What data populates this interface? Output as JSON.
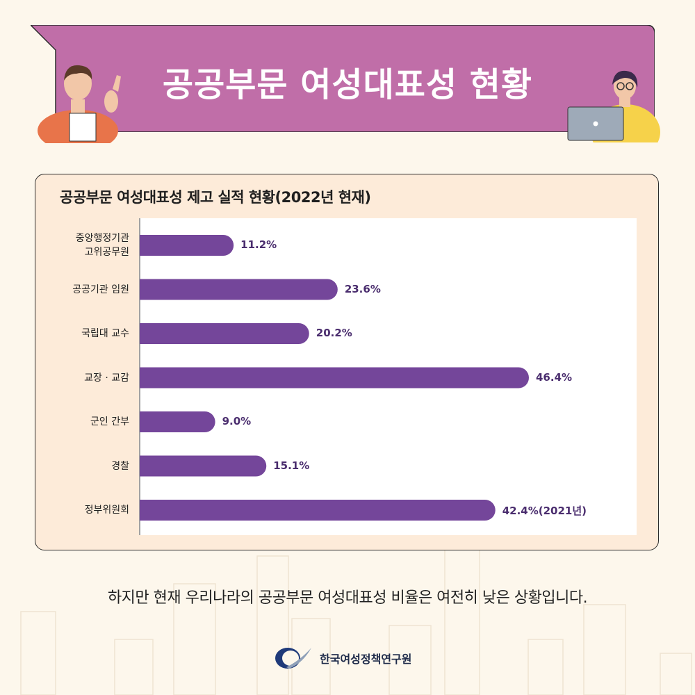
{
  "header": {
    "title": "공공부문 여성대표성 현황"
  },
  "colors": {
    "banner": "#c06ea8",
    "bar": "#74469a",
    "card_bg": "#fdebd9",
    "page_bg": "#fdf7ec"
  },
  "chart_data": {
    "type": "bar",
    "orientation": "horizontal",
    "title": "공공부문 여성대표성 제고 실적 현황(2022년 현재)",
    "categories": [
      "중앙행정기관 고위공무원",
      "공공기관 임원",
      "국립대 교수",
      "교장 · 교감",
      "군인 간부",
      "경찰",
      "정부위원회"
    ],
    "category_lines": [
      [
        "중앙행정기관",
        "고위공무원"
      ],
      [
        "공공기관 임원"
      ],
      [
        "국립대 교수"
      ],
      [
        "교장 · 교감"
      ],
      [
        "군인 간부"
      ],
      [
        "경찰"
      ],
      [
        "정부위원회"
      ]
    ],
    "values": [
      11.2,
      23.6,
      20.2,
      46.4,
      9.0,
      15.1,
      42.4
    ],
    "value_labels": [
      "11.2%",
      "23.6%",
      "20.2%",
      "46.4%",
      "9.0%",
      "15.1%",
      "42.4%(2021년)"
    ],
    "xlim": [
      0,
      50
    ],
    "grid": false,
    "legend": "none"
  },
  "caption": "하지만 현재 우리나라의 공공부문 여성대표성 비율은 여전히 낮은 상황입니다.",
  "footer": {
    "org_name": "한국여성정책연구원",
    "logo_icon": "kwdi-logo-icon"
  }
}
